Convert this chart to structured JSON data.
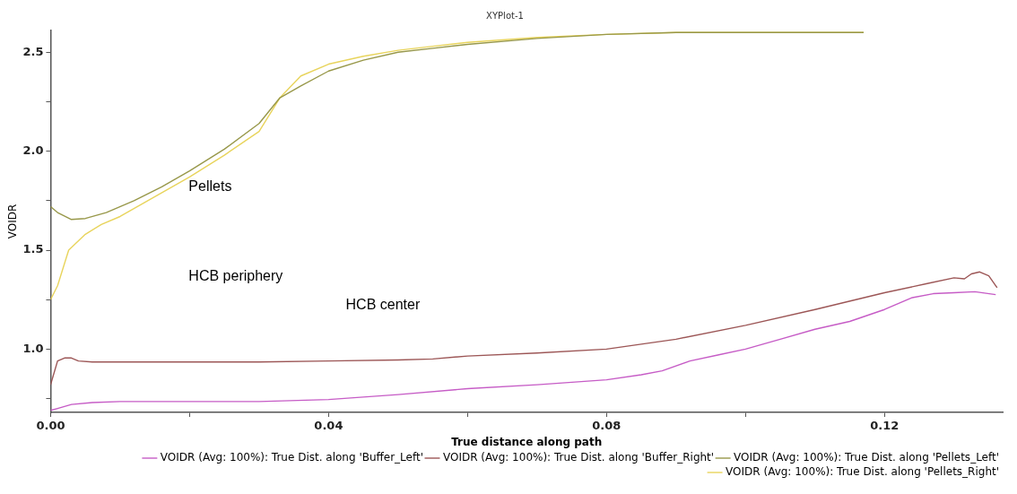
{
  "chart_data": {
    "type": "line",
    "title": "XYPlot-1",
    "xlabel": "True distance along path",
    "ylabel": "VOIDR",
    "xlim": [
      0,
      0.137
    ],
    "xticks": [
      "0.00",
      {
        "value": 0.02,
        "label": null
      },
      0.04,
      {
        "value": 0.06,
        "label": null
      },
      0.08,
      {
        "value": 0.1,
        "label": null
      },
      0.12
    ],
    "ylim": [
      0.68,
      2.61
    ],
    "yticks": [
      {
        "value": 0.75,
        "label": null
      },
      "1.0",
      {
        "value": 1.25,
        "label": null
      },
      1.5,
      {
        "value": 1.75,
        "label": null
      },
      "2.0",
      {
        "value": 2.25,
        "label": null
      },
      2.5
    ],
    "annotations": [
      "Pellets",
      "HCB periphery",
      "HCB center"
    ],
    "legend": "bottom right",
    "grid": false,
    "marker": "none",
    "line_style": "solid",
    "series": [
      {
        "name": "VOIDR (Avg: 100%): True Dist. along 'Buffer_Left'",
        "color": "#c65cc6",
        "x": [
          0,
          0.001,
          0.003,
          0.006,
          0.01,
          0.02,
          0.03,
          0.04,
          0.05,
          0.06,
          0.07,
          0.08,
          0.085,
          0.088,
          0.092,
          0.096,
          0.1,
          0.105,
          0.11,
          0.115,
          0.12,
          0.124,
          0.127,
          0.13,
          0.133,
          0.136
        ],
        "values": [
          0.69,
          0.7,
          0.72,
          0.73,
          0.735,
          0.735,
          0.735,
          0.745,
          0.77,
          0.8,
          0.82,
          0.845,
          0.87,
          0.89,
          0.94,
          0.97,
          1.0,
          1.05,
          1.1,
          1.14,
          1.2,
          1.26,
          1.28,
          1.285,
          1.29,
          1.275
        ]
      },
      {
        "name": "VOIDR (Avg: 100%): True Dist. along 'Buffer_Right'",
        "color": "#9c5656",
        "x": [
          0,
          0.001,
          0.002,
          0.003,
          0.004,
          0.006,
          0.01,
          0.02,
          0.03,
          0.04,
          0.05,
          0.055,
          0.06,
          0.07,
          0.08,
          0.09,
          0.1,
          0.11,
          0.12,
          0.126,
          0.13,
          0.1315,
          0.1325,
          0.1337,
          0.135,
          0.1362
        ],
        "values": [
          0.82,
          0.94,
          0.955,
          0.955,
          0.94,
          0.935,
          0.935,
          0.935,
          0.935,
          0.94,
          0.945,
          0.95,
          0.965,
          0.98,
          1.0,
          1.05,
          1.12,
          1.2,
          1.285,
          1.33,
          1.36,
          1.355,
          1.38,
          1.39,
          1.37,
          1.31
        ]
      },
      {
        "name": "VOIDR (Avg: 100%): True Dist. along 'Pellets_Left'",
        "color": "#98984a",
        "x": [
          0,
          0.001,
          0.003,
          0.005,
          0.008,
          0.012,
          0.016,
          0.02,
          0.025,
          0.03,
          0.033,
          0.036,
          0.04,
          0.045,
          0.05,
          0.055,
          0.06,
          0.07,
          0.08,
          0.09,
          0.1,
          0.117
        ],
        "values": [
          1.72,
          1.69,
          1.655,
          1.66,
          1.69,
          1.75,
          1.82,
          1.9,
          2.01,
          2.14,
          2.27,
          2.33,
          2.405,
          2.46,
          2.5,
          2.52,
          2.54,
          2.57,
          2.59,
          2.6,
          2.6,
          2.6
        ]
      },
      {
        "name": "VOIDR (Avg: 100%): True Dist. along 'Pellets_Right'",
        "color": "#e8d45c",
        "x": [
          0,
          0.001,
          0.0026,
          0.005,
          0.0073,
          0.01,
          0.015,
          0.02,
          0.025,
          0.03,
          0.033,
          0.036,
          0.04,
          0.045,
          0.05,
          0.055,
          0.06,
          0.07,
          0.08,
          0.09,
          0.1,
          0.117
        ],
        "values": [
          1.25,
          1.32,
          1.5,
          1.58,
          1.63,
          1.67,
          1.77,
          1.87,
          1.98,
          2.1,
          2.27,
          2.38,
          2.44,
          2.48,
          2.51,
          2.53,
          2.55,
          2.575,
          2.59,
          2.6,
          2.6,
          2.6
        ]
      }
    ]
  }
}
